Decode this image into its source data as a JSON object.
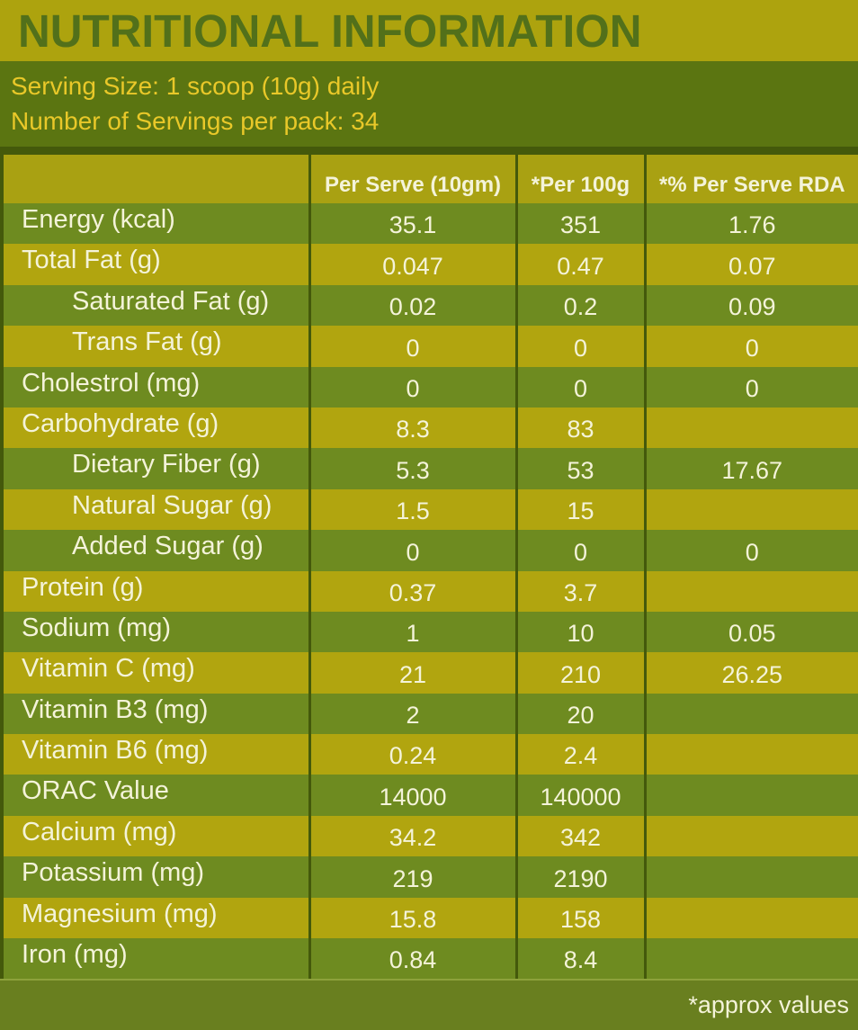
{
  "title": "NUTRITIONAL INFORMATION",
  "serving": {
    "line1": "Serving Size: 1 scoop (10g) daily",
    "line2": "Number of Servings per pack: 34"
  },
  "table": {
    "columns": [
      "",
      "Per Serve (10gm)",
      "*Per 100g",
      "*% Per Serve RDA"
    ],
    "rows": [
      {
        "label": "Energy (kcal)",
        "indent": false,
        "per_serve": "35.1",
        "per_100g": "351",
        "rda": "1.76"
      },
      {
        "label": "Total Fat (g)",
        "indent": false,
        "per_serve": "0.047",
        "per_100g": "0.47",
        "rda": "0.07"
      },
      {
        "label": "Saturated Fat (g)",
        "indent": true,
        "per_serve": "0.02",
        "per_100g": "0.2",
        "rda": "0.09"
      },
      {
        "label": "Trans Fat (g)",
        "indent": true,
        "per_serve": "0",
        "per_100g": "0",
        "rda": "0"
      },
      {
        "label": "Cholestrol (mg)",
        "indent": false,
        "per_serve": "0",
        "per_100g": "0",
        "rda": "0"
      },
      {
        "label": "Carbohydrate (g)",
        "indent": false,
        "per_serve": "8.3",
        "per_100g": "83",
        "rda": ""
      },
      {
        "label": "Dietary Fiber (g)",
        "indent": true,
        "per_serve": "5.3",
        "per_100g": "53",
        "rda": "17.67"
      },
      {
        "label": "Natural Sugar (g)",
        "indent": true,
        "per_serve": "1.5",
        "per_100g": "15",
        "rda": ""
      },
      {
        "label": "Added Sugar (g)",
        "indent": true,
        "per_serve": "0",
        "per_100g": "0",
        "rda": "0"
      },
      {
        "label": "Protein (g)",
        "indent": false,
        "per_serve": "0.37",
        "per_100g": "3.7",
        "rda": ""
      },
      {
        "label": "Sodium (mg)",
        "indent": false,
        "per_serve": "1",
        "per_100g": "10",
        "rda": "0.05"
      },
      {
        "label": "Vitamin C (mg)",
        "indent": false,
        "per_serve": "21",
        "per_100g": "210",
        "rda": "26.25"
      },
      {
        "label": "Vitamin B3 (mg)",
        "indent": false,
        "per_serve": "2",
        "per_100g": "20",
        "rda": ""
      },
      {
        "label": "Vitamin B6 (mg)",
        "indent": false,
        "per_serve": "0.24",
        "per_100g": "2.4",
        "rda": ""
      },
      {
        "label": "ORAC Value",
        "indent": false,
        "per_serve": "14000",
        "per_100g": "140000",
        "rda": ""
      },
      {
        "label": "Calcium (mg)",
        "indent": false,
        "per_serve": "34.2",
        "per_100g": "342",
        "rda": ""
      },
      {
        "label": "Potassium (mg)",
        "indent": false,
        "per_serve": "219",
        "per_100g": "2190",
        "rda": ""
      },
      {
        "label": "Magnesium (mg)",
        "indent": false,
        "per_serve": "15.8",
        "per_100g": "158",
        "rda": ""
      },
      {
        "label": "Iron (mg)",
        "indent": false,
        "per_serve": "0.84",
        "per_100g": "8.4",
        "rda": ""
      }
    ]
  },
  "footer": {
    "note": "*approx values"
  },
  "colors": {
    "title_band_bg": "#ada30e",
    "title_text": "#52701a",
    "serving_band_bg": "#5b7511",
    "serving_text": "#e9c829",
    "header_row_bg": "#a9a112",
    "row_green_bg": "#6e8b20",
    "row_olive_bg": "#b1a50f",
    "cell_text": "#f4f3d9",
    "divider_dark": "#44590b",
    "footer_bg": "#697f1f",
    "footer_divider": "#8da23c"
  }
}
